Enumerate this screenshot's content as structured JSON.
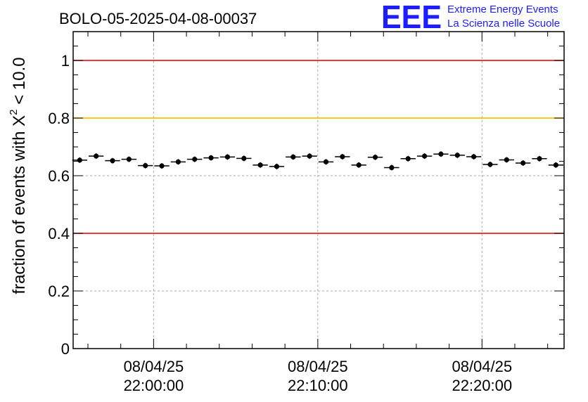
{
  "chart_data": {
    "type": "scatter",
    "title": "BOLO-05-2025-04-08-00037",
    "ylabel_prefix": "fraction of events with ",
    "ylabel_chi": "X",
    "ylabel_sup": "2",
    "ylabel_suffix": " < 10.0",
    "xlabel": "",
    "ylim": [
      0,
      1.1
    ],
    "xlim_minutes": [
      -4.9,
      25
    ],
    "grid": true,
    "yticks": [
      {
        "value": 0,
        "label": "0"
      },
      {
        "value": 0.2,
        "label": "0.2"
      },
      {
        "value": 0.4,
        "label": "0.4"
      },
      {
        "value": 0.6,
        "label": "0.6"
      },
      {
        "value": 0.8,
        "label": "0.8"
      },
      {
        "value": 1,
        "label": "1"
      }
    ],
    "xticks": [
      {
        "minute": 0,
        "date": "08/04/25",
        "time": "22:00:00"
      },
      {
        "minute": 10,
        "date": "08/04/25",
        "time": "22:10:00"
      },
      {
        "minute": 20,
        "date": "08/04/25",
        "time": "22:20:00"
      }
    ],
    "reference_lines": [
      {
        "value": 1.0,
        "color": "#e8201c"
      },
      {
        "value": 0.8,
        "color": "#ffc000"
      },
      {
        "value": 0.4,
        "color": "#e8201c"
      }
    ],
    "bin_width_minutes": 1,
    "series": [
      {
        "name": "fraction",
        "x_minutes": [
          -4.5,
          -3.5,
          -2.5,
          -1.5,
          -0.5,
          0.5,
          1.5,
          2.5,
          3.5,
          4.5,
          5.5,
          6.5,
          7.5,
          8.5,
          9.5,
          10.5,
          11.5,
          12.5,
          13.5,
          14.5,
          15.5,
          16.5,
          17.5,
          18.5,
          19.5,
          20.5,
          21.5,
          22.5,
          23.5,
          24.5
        ],
        "values": [
          0.654,
          0.668,
          0.652,
          0.657,
          0.635,
          0.634,
          0.648,
          0.657,
          0.662,
          0.665,
          0.66,
          0.637,
          0.632,
          0.665,
          0.668,
          0.648,
          0.666,
          0.637,
          0.664,
          0.628,
          0.659,
          0.668,
          0.675,
          0.671,
          0.666,
          0.639,
          0.655,
          0.644,
          0.659,
          0.637
        ]
      }
    ]
  },
  "logo": {
    "mark": "EEE",
    "line1": "Extreme Energy Events",
    "line2": "La Scienza nelle Scuole"
  }
}
